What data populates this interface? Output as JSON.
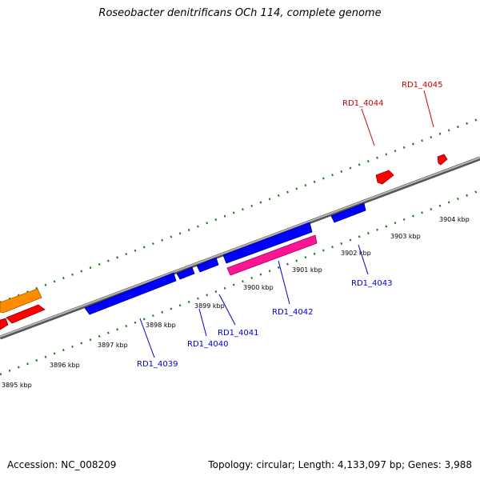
{
  "title": "Roseobacter denitrificans OCh 114, complete genome",
  "footer": {
    "accession": "Accession: NC_008209",
    "summary": "Topology: circular; Length: 4,133,097 bp; Genes: 3,988"
  },
  "colors": {
    "backbone": "#8c8c8c",
    "tick_dots": "#1a7a1a",
    "forward_gene": "#ff0000",
    "reverse_gene": "#0000ff",
    "rna_gene": "#ff1493",
    "other_gene": "#ff8c00",
    "forward_label": "#cc0000",
    "reverse_label": "#0000cc"
  },
  "ticks": [
    {
      "label": "3895 kbp"
    },
    {
      "label": "3896 kbp"
    },
    {
      "label": "3897 kbp"
    },
    {
      "label": "3898 kbp"
    },
    {
      "label": "3899 kbp"
    },
    {
      "label": "3900 kbp"
    },
    {
      "label": "3901 kbp"
    },
    {
      "label": "3902 kbp"
    },
    {
      "label": "3903 kbp"
    },
    {
      "label": "3904 kbp"
    }
  ],
  "gene_labels": [
    {
      "name": "RD1_4045",
      "strand": "forward"
    },
    {
      "name": "RD1_4044",
      "strand": "forward"
    },
    {
      "name": "RD1_4043",
      "strand": "reverse"
    },
    {
      "name": "RD1_4042",
      "strand": "reverse"
    },
    {
      "name": "RD1_4041",
      "strand": "reverse"
    },
    {
      "name": "RD1_4040",
      "strand": "reverse"
    },
    {
      "name": "RD1_4039",
      "strand": "reverse"
    }
  ]
}
